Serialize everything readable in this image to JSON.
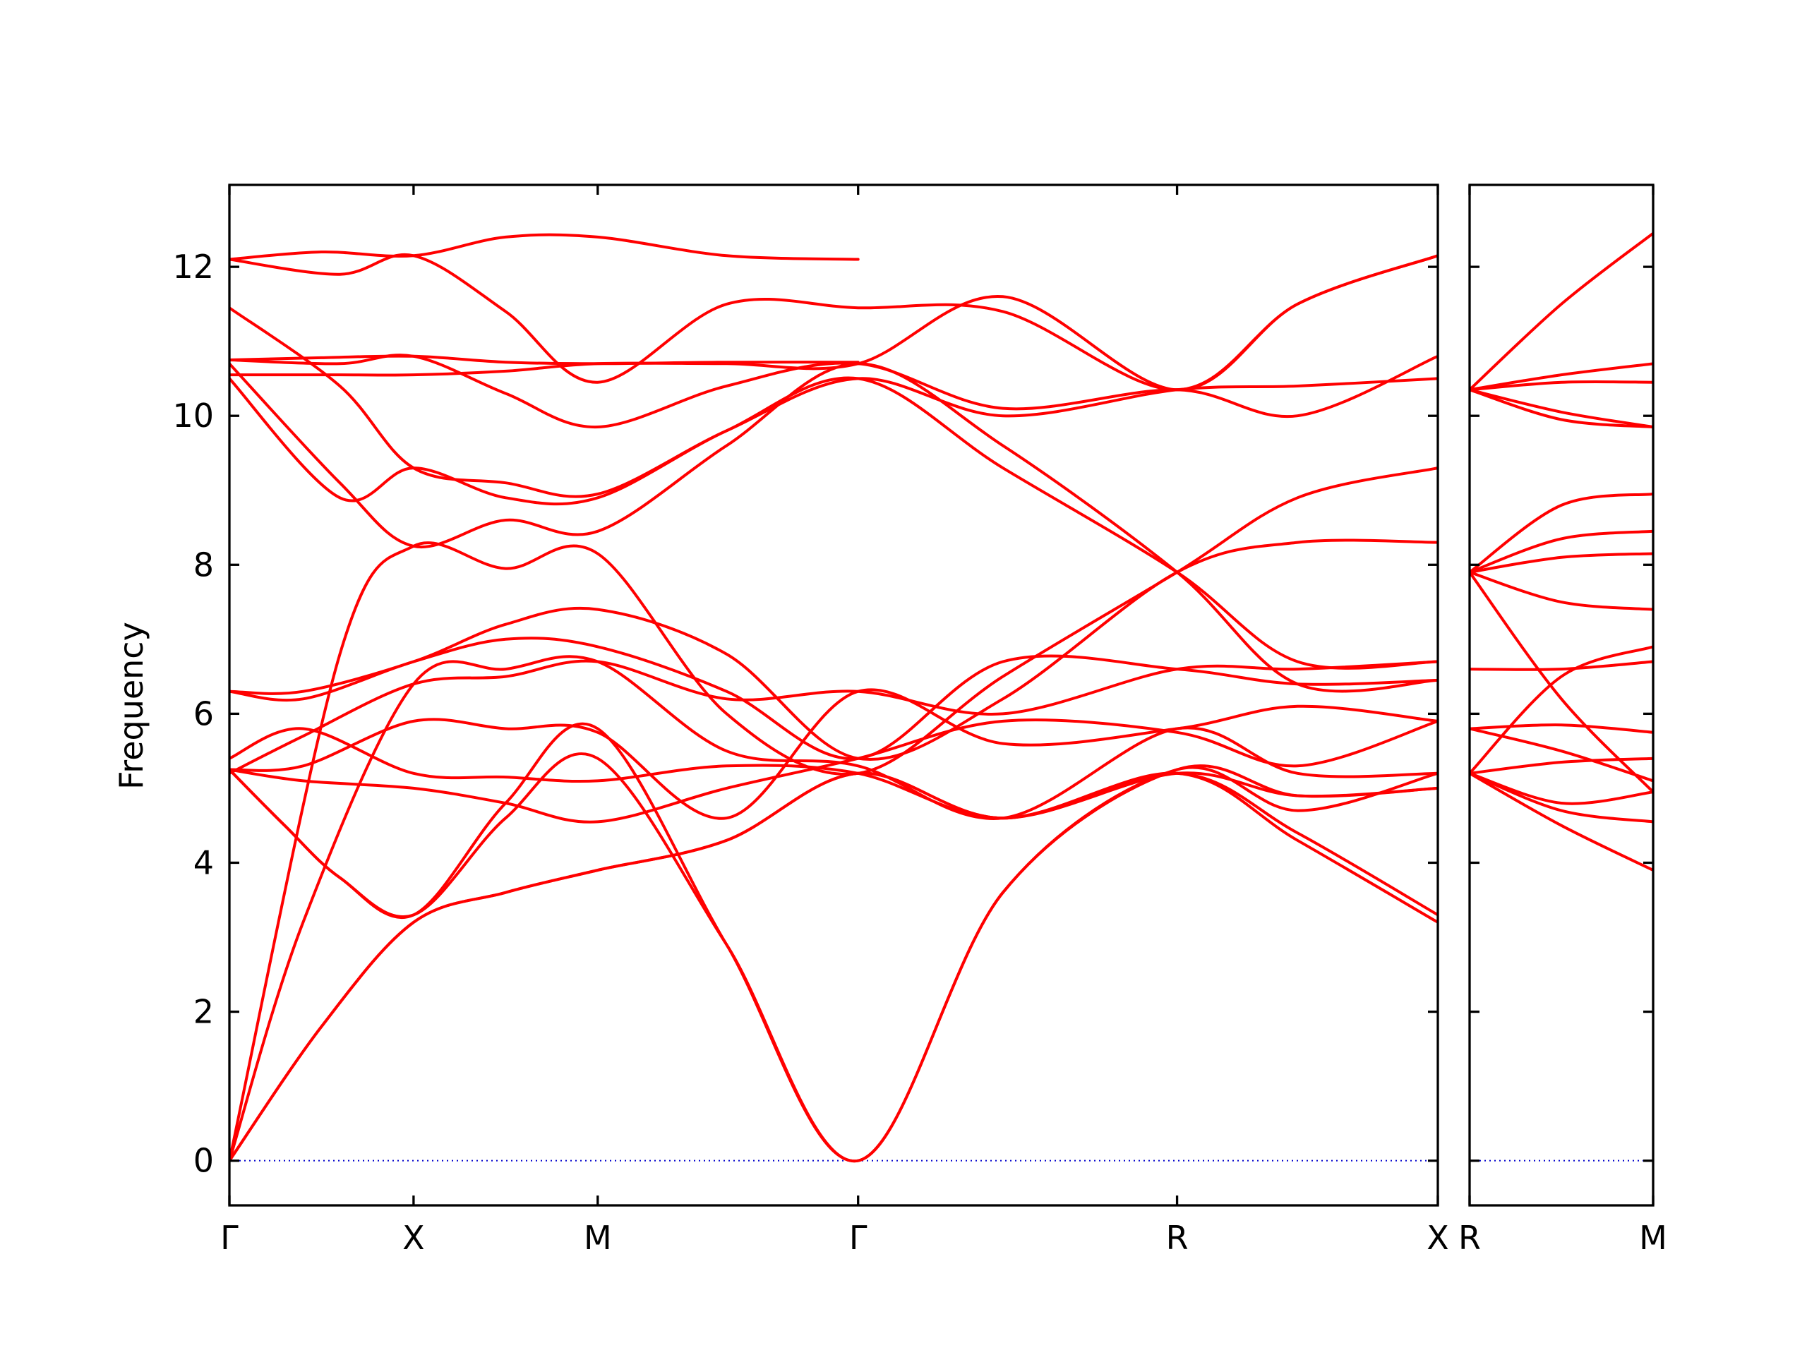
{
  "chart_data": {
    "type": "line",
    "title": "",
    "xlabel": "",
    "ylabel": "Frequency",
    "ylim": [
      -0.6,
      13.1
    ],
    "yticks": [
      0,
      2,
      4,
      6,
      8,
      10,
      12
    ],
    "grid": false,
    "legend": "none",
    "colors": {
      "bands": "#ff0000",
      "zero_line": "#0000cc",
      "axes": "#000000"
    },
    "panels": [
      {
        "x_range": [
          0,
          3.281
        ],
        "high_symmetry_points": [
          {
            "label": "Γ",
            "x": 0
          },
          {
            "label": "X",
            "x": 0.5
          },
          {
            "label": "M",
            "x": 1.0
          },
          {
            "label": "Γ",
            "x": 1.707
          },
          {
            "label": "R",
            "x": 2.573
          },
          {
            "label": "X",
            "x": 3.281
          }
        ],
        "series": [
          {
            "x": [
              0,
              0.25,
              0.5,
              0.75,
              1.0,
              1.35,
              1.707,
              2.1,
              2.573,
              2.9,
              3.281
            ],
            "y": [
              0,
              1.8,
              3.2,
              3.6,
              3.9,
              4.3,
              5.2,
              4.6,
              5.2,
              4.3,
              3.2
            ]
          },
          {
            "x": [
              0,
              0.25,
              0.5,
              0.75,
              1.0,
              1.35,
              1.707,
              2.1,
              2.573,
              2.9,
              3.281
            ],
            "y": [
              0,
              1.8,
              3.2,
              3.6,
              3.9,
              4.3,
              5.2,
              4.6,
              5.2,
              4.4,
              3.3
            ]
          },
          {
            "x": [
              0,
              0.15,
              0.3,
              0.5,
              0.75,
              1.0,
              1.35,
              1.707,
              2.1,
              2.573,
              2.9,
              3.281
            ],
            "y": [
              5.25,
              4.5,
              3.8,
              3.3,
              4.8,
              5.8,
              2.9,
              0,
              3.6,
              5.25,
              4.9,
              5.0
            ]
          },
          {
            "x": [
              0,
              0.15,
              0.3,
              0.5,
              0.75,
              1.0,
              1.35,
              1.707,
              2.1,
              2.573,
              2.9,
              3.281
            ],
            "y": [
              5.25,
              4.5,
              3.8,
              3.3,
              4.6,
              5.4,
              2.9,
              0,
              3.6,
              5.25,
              4.7,
              5.2
            ]
          },
          {
            "x": [
              0,
              0.2,
              0.5,
              0.75,
              1.0,
              1.35,
              1.707,
              2.1,
              2.573,
              2.9,
              3.281
            ],
            "y": [
              0,
              3.2,
              6.4,
              6.6,
              6.7,
              5.5,
              5.3,
              4.6,
              5.8,
              5.2,
              5.2
            ]
          },
          {
            "x": [
              0,
              0.2,
              0.5,
              0.75,
              1.0,
              1.35,
              1.707,
              2.1,
              2.573,
              2.9,
              3.281
            ],
            "y": [
              5.25,
              5.1,
              5.0,
              4.8,
              4.55,
              5.0,
              5.4,
              5.9,
              5.75,
              5.3,
              5.9
            ]
          },
          {
            "x": [
              0,
              0.2,
              0.5,
              0.75,
              1.0,
              1.35,
              1.707,
              2.1,
              2.573,
              2.9,
              3.281
            ],
            "y": [
              5.4,
              5.8,
              5.2,
              5.15,
              5.1,
              5.3,
              5.2,
              4.6,
              5.2,
              4.9,
              5.0
            ]
          },
          {
            "x": [
              0,
              0.2,
              0.5,
              0.75,
              1.0,
              1.35,
              1.707,
              2.1,
              2.573,
              2.9,
              3.281
            ],
            "y": [
              5.25,
              5.3,
              5.9,
              5.8,
              5.75,
              4.6,
              6.3,
              5.6,
              5.8,
              6.1,
              5.9
            ]
          },
          {
            "x": [
              0,
              0.2,
              0.5,
              0.75,
              1.0,
              1.35,
              1.707,
              2.1,
              2.573,
              2.9,
              3.281
            ],
            "y": [
              5.2,
              5.7,
              6.4,
              6.5,
              6.7,
              6.2,
              6.3,
              6.0,
              6.6,
              6.6,
              6.7
            ]
          },
          {
            "x": [
              0,
              0.2,
              0.5,
              0.75,
              1.0,
              1.35,
              1.707,
              2.1,
              2.573,
              2.9,
              3.281
            ],
            "y": [
              6.3,
              6.2,
              6.7,
              7.0,
              6.9,
              6.3,
              5.4,
              6.7,
              6.6,
              6.4,
              6.45
            ]
          },
          {
            "x": [
              0,
              0.2,
              0.5,
              0.75,
              1.0,
              1.35,
              1.707,
              2.1,
              2.573,
              2.9,
              3.281
            ],
            "y": [
              6.3,
              6.3,
              6.7,
              7.2,
              7.4,
              6.8,
              5.4,
              6.2,
              7.9,
              8.3,
              8.3
            ]
          },
          {
            "x": [
              0,
              0.3,
              0.5,
              0.75,
              1.0,
              1.35,
              1.707,
              2.1,
              2.573,
              2.9,
              3.281
            ],
            "y": [
              0,
              6.8,
              8.25,
              7.95,
              8.15,
              6.0,
              5.2,
              6.5,
              7.9,
              8.9,
              9.3
            ]
          },
          {
            "x": [
              0,
              0.3,
              0.5,
              0.75,
              1.0,
              1.35,
              1.707,
              2.1,
              2.573,
              2.9,
              3.281
            ],
            "y": [
              10.5,
              8.9,
              9.3,
              8.9,
              8.9,
              9.8,
              10.5,
              9.3,
              7.9,
              6.7,
              6.7
            ]
          },
          {
            "x": [
              0,
              0.3,
              0.5,
              0.75,
              1.0,
              1.35,
              1.707,
              2.1,
              2.573,
              2.9,
              3.281
            ],
            "y": [
              10.7,
              9.1,
              8.25,
              8.6,
              8.45,
              9.6,
              10.7,
              9.6,
              7.9,
              6.4,
              6.45
            ]
          },
          {
            "x": [
              0,
              0.3,
              0.5,
              0.75,
              1.0,
              1.35,
              1.707,
              2.1,
              2.573,
              2.9,
              3.281
            ],
            "y": [
              11.45,
              10.4,
              9.3,
              9.1,
              8.95,
              9.8,
              10.5,
              10.0,
              10.35,
              10.4,
              10.5
            ]
          },
          {
            "x": [
              0,
              0.3,
              0.5,
              0.75,
              1.0,
              1.35,
              1.707,
              2.1,
              2.573,
              2.9,
              3.281
            ],
            "y": [
              10.75,
              10.7,
              10.8,
              10.3,
              9.85,
              10.4,
              10.7,
              10.1,
              10.35,
              10.0,
              10.8
            ]
          },
          {
            "x": [
              0,
              0.3,
              0.5,
              0.75,
              1.0,
              1.35,
              1.707,
              2.1,
              2.573,
              2.9,
              3.281
            ],
            "y": [
              10.55,
              10.55,
              10.55,
              10.6,
              10.7,
              10.7,
              10.7,
              11.6,
              10.35,
              11.5,
              12.15
            ]
          },
          {
            "x": [
              0,
              0.3,
              0.5,
              0.75,
              1.0,
              1.35,
              1.707,
              2.1,
              2.573,
              2.9,
              3.281
            ],
            "y": [
              12.1,
              11.9,
              12.15,
              11.4,
              10.45,
              11.5,
              11.45,
              11.4,
              10.35,
              11.5,
              12.15
            ]
          },
          {
            "x": [
              0,
              0.25,
              0.5,
              0.75,
              1.0,
              1.35,
              1.707
            ],
            "y": [
              12.1,
              12.2,
              12.15,
              12.4,
              12.4,
              12.15,
              12.1
            ]
          },
          {
            "x": [
              0,
              0.25,
              0.5,
              0.75,
              1.0,
              1.35,
              1.707
            ],
            "y": [
              10.75,
              10.78,
              10.8,
              10.72,
              10.7,
              10.72,
              10.72
            ]
          }
        ]
      },
      {
        "x_range": [
          0,
          0.5
        ],
        "high_symmetry_points": [
          {
            "label": "R",
            "x": 0
          },
          {
            "label": "M",
            "x": 0.5
          }
        ],
        "series": [
          {
            "x": [
              0,
              0.25,
              0.5
            ],
            "y": [
              10.35,
              11.5,
              12.45
            ]
          },
          {
            "x": [
              0,
              0.25,
              0.5
            ],
            "y": [
              10.35,
              10.55,
              10.7
            ]
          },
          {
            "x": [
              0,
              0.25,
              0.5
            ],
            "y": [
              10.35,
              10.45,
              10.45
            ]
          },
          {
            "x": [
              0,
              0.25,
              0.5
            ],
            "y": [
              10.35,
              10.05,
              9.85
            ]
          },
          {
            "x": [
              0,
              0.25,
              0.5
            ],
            "y": [
              10.35,
              9.95,
              9.85
            ]
          },
          {
            "x": [
              0,
              0.25,
              0.5
            ],
            "y": [
              7.9,
              8.8,
              8.95
            ]
          },
          {
            "x": [
              0,
              0.25,
              0.5
            ],
            "y": [
              7.9,
              8.35,
              8.45
            ]
          },
          {
            "x": [
              0,
              0.25,
              0.5
            ],
            "y": [
              7.9,
              8.1,
              8.15
            ]
          },
          {
            "x": [
              0,
              0.25,
              0.5
            ],
            "y": [
              7.9,
              7.5,
              7.4
            ]
          },
          {
            "x": [
              0,
              0.25,
              0.5
            ],
            "y": [
              7.9,
              6.2,
              4.95
            ]
          },
          {
            "x": [
              0,
              0.25,
              0.5
            ],
            "y": [
              5.2,
              6.5,
              6.9
            ]
          },
          {
            "x": [
              0,
              0.25,
              0.5
            ],
            "y": [
              6.6,
              6.6,
              6.7
            ]
          },
          {
            "x": [
              0,
              0.25,
              0.5
            ],
            "y": [
              5.8,
              5.85,
              5.75
            ]
          },
          {
            "x": [
              0,
              0.25,
              0.5
            ],
            "y": [
              5.2,
              5.35,
              5.4
            ]
          },
          {
            "x": [
              0,
              0.25,
              0.5
            ],
            "y": [
              5.8,
              5.5,
              5.1
            ]
          },
          {
            "x": [
              0,
              0.25,
              0.5
            ],
            "y": [
              5.2,
              4.8,
              4.95
            ]
          },
          {
            "x": [
              0,
              0.25,
              0.5
            ],
            "y": [
              5.2,
              4.7,
              4.55
            ]
          },
          {
            "x": [
              0,
              0.25,
              0.5
            ],
            "y": [
              5.2,
              4.5,
              3.9
            ]
          }
        ]
      }
    ]
  }
}
